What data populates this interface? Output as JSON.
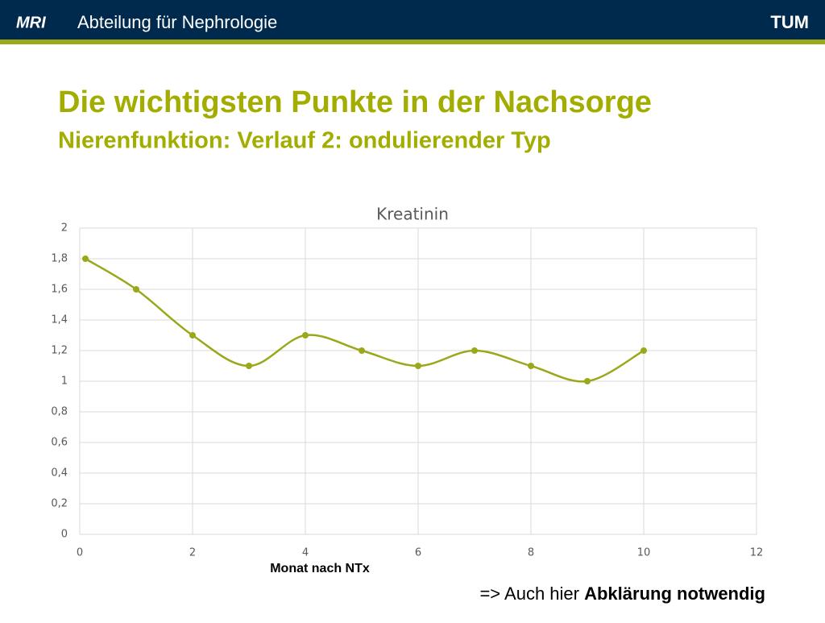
{
  "header": {
    "logo_left": "MRI",
    "title": "Abteilung für Nephrologie",
    "logo_right": "TUM"
  },
  "slide": {
    "title": "Die wichtigsten Punkte in der Nachsorge",
    "subtitle": "Nierenfunktion: Verlauf 2: ondulierender Typ",
    "note_prefix": "=> Auch hier",
    "note_bold": "Abklärung notwendig"
  },
  "chart_data": {
    "type": "line",
    "title": "Kreatinin",
    "xlabel": "Monat nach NTx",
    "series": [
      {
        "name": "Kreatinin",
        "color": "#9aa81a",
        "x": [
          0.1,
          1,
          2,
          3,
          4,
          5,
          6,
          7,
          8,
          9,
          10
        ],
        "values": [
          1.8,
          1.6,
          1.3,
          1.1,
          1.3,
          1.2,
          1.1,
          1.2,
          1.1,
          1.0,
          1.2
        ]
      }
    ],
    "xlim": [
      0,
      12
    ],
    "xticks": [
      0,
      2,
      4,
      6,
      8,
      10,
      12
    ],
    "ylim": [
      0,
      2
    ],
    "yticks": [
      0,
      {
        "value": 0.2,
        "label": "0,2"
      },
      {
        "value": 0.4,
        "label": "0,4"
      },
      {
        "value": 0.6,
        "label": "0,6"
      },
      {
        "value": 0.8,
        "label": "0,8"
      },
      1,
      {
        "value": 1.2,
        "label": "1,2"
      },
      {
        "value": 1.4,
        "label": "1,4"
      },
      {
        "value": 1.6,
        "label": "1,6"
      },
      {
        "value": 1.8,
        "label": "1,8"
      },
      2
    ],
    "grid": true,
    "smooth": true
  }
}
